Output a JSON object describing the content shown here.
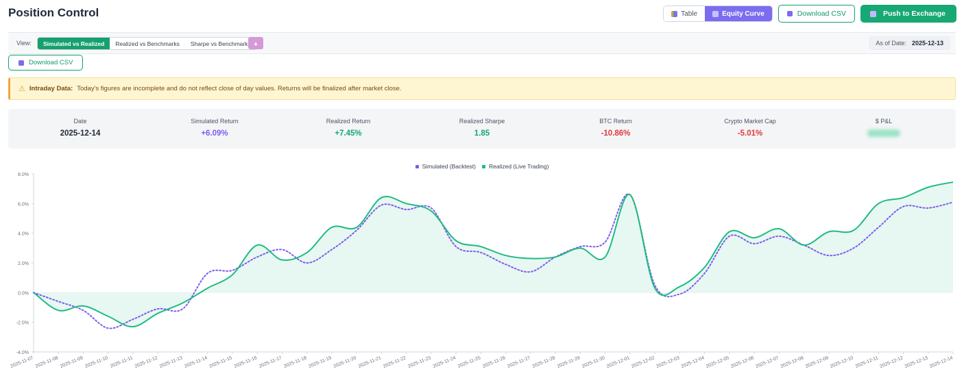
{
  "page": {
    "title": "Position Control"
  },
  "header": {
    "view_toggle": [
      {
        "label": "Table",
        "icon": "table-icon",
        "active": false
      },
      {
        "label": "Equity Curve",
        "icon": "chart-icon",
        "active": true
      }
    ],
    "download_label": "Download CSV",
    "push_label": "Push to Exchange"
  },
  "viewbar": {
    "label": "View:",
    "tabs": [
      {
        "label": "Simulated vs Realized",
        "active": true
      },
      {
        "label": "Realized vs Benchmarks",
        "active": false
      },
      {
        "label": "Sharpe vs Benchmarks",
        "active": false
      }
    ],
    "as_of_label": "As of Date:",
    "as_of_value": "2025-12-13"
  },
  "download2_label": "Download CSV",
  "alert": {
    "title": "Intraday Data:",
    "message": "Today's figures are incomplete and do not reflect close of day values. Returns will be finalized after market close."
  },
  "stats": [
    {
      "label": "Date",
      "value": "2025-12-14",
      "tone": "neutral"
    },
    {
      "label": "Simulated Return",
      "value": "+6.09%",
      "tone": "purple"
    },
    {
      "label": "Realized Return",
      "value": "+7.45%",
      "tone": "green"
    },
    {
      "label": "Realized Sharpe",
      "value": "1.85",
      "tone": "green"
    },
    {
      "label": "BTC Return",
      "value": "-10.86%",
      "tone": "red"
    },
    {
      "label": "Crypto Market Cap",
      "value": "-5.01%",
      "tone": "red"
    },
    {
      "label": "$ P&L",
      "value": "",
      "tone": "blurred"
    }
  ],
  "colors": {
    "simulated": "#7c5cf0",
    "realized": "#1fba82",
    "fill": "#e3f6ee",
    "accent": "#16a070"
  },
  "chart_data": {
    "type": "line",
    "title": "",
    "xlabel": "",
    "ylabel": "",
    "ylim": [
      -4,
      8
    ],
    "yticks": [
      -4,
      -2,
      0,
      2,
      4,
      6,
      8
    ],
    "ytick_labels": [
      "-4.0%",
      "-2.0%",
      "0.0%",
      "2.0%",
      "4.0%",
      "6.0%",
      "8.0%"
    ],
    "x": [
      "2025-11-07",
      "2025-11-08",
      "2025-11-09",
      "2025-11-10",
      "2025-11-11",
      "2025-11-12",
      "2025-11-13",
      "2025-11-14",
      "2025-11-15",
      "2025-11-16",
      "2025-11-17",
      "2025-11-18",
      "2025-11-19",
      "2025-11-20",
      "2025-11-21",
      "2025-11-22",
      "2025-11-23",
      "2025-11-24",
      "2025-11-25",
      "2025-11-26",
      "2025-11-27",
      "2025-11-28",
      "2025-11-29",
      "2025-11-30",
      "2025-12-01",
      "2025-12-02",
      "2025-12-03",
      "2025-12-04",
      "2025-12-05",
      "2025-12-06",
      "2025-12-07",
      "2025-12-08",
      "2025-12-09",
      "2025-12-10",
      "2025-12-11",
      "2025-12-12",
      "2025-12-13",
      "2025-12-14"
    ],
    "series": [
      {
        "name": "Simulated (Backtest)",
        "style": "dotted",
        "values": [
          0.0,
          -0.6,
          -1.2,
          -2.4,
          -1.8,
          -1.1,
          -1.1,
          1.3,
          1.5,
          2.4,
          2.9,
          2.0,
          2.9,
          4.2,
          5.9,
          5.6,
          5.7,
          3.1,
          2.7,
          1.9,
          1.4,
          2.4,
          3.1,
          3.4,
          6.6,
          0.5,
          -0.1,
          1.3,
          3.8,
          3.3,
          3.8,
          3.2,
          2.5,
          3.0,
          4.4,
          5.8,
          5.7,
          6.09
        ]
      },
      {
        "name": "Realized (Live Trading)",
        "style": "solid",
        "values": [
          0.0,
          -1.2,
          -0.9,
          -1.6,
          -2.3,
          -1.4,
          -0.7,
          0.3,
          1.2,
          3.2,
          2.2,
          2.7,
          4.4,
          4.4,
          6.4,
          6.0,
          5.5,
          3.5,
          3.1,
          2.5,
          2.3,
          2.4,
          3.0,
          2.4,
          6.6,
          0.3,
          0.4,
          1.7,
          4.1,
          3.7,
          4.3,
          3.2,
          4.1,
          4.2,
          6.0,
          6.4,
          7.1,
          7.45
        ]
      }
    ]
  }
}
